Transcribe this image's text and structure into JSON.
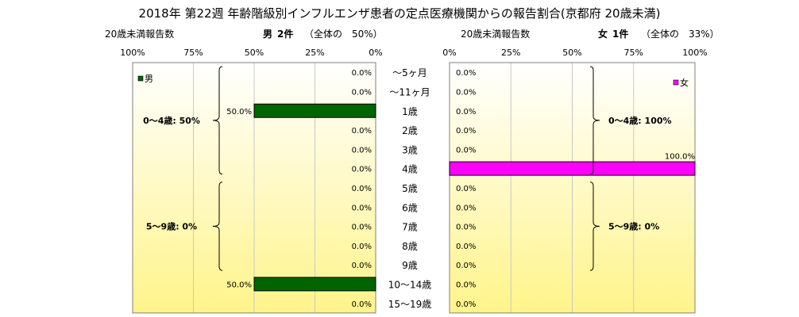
{
  "title": "2018年 第22週 年齢階級別インフルエンザ患者の定点医療機関からの報告割合(京都府 20歳未満)",
  "left_header": {
    "label": "20歳未満報告数",
    "sex": "男",
    "count": "2件",
    "share": "（全体の　50%）"
  },
  "right_header": {
    "label": "20歳未満報告数",
    "sex": "女",
    "count": "1件",
    "share": "（全体の　33%）"
  },
  "colors": {
    "male": "#006400",
    "female": "#ff00ff",
    "bg_top": "#ffffff",
    "bg_bottom": "#fff48a"
  },
  "chart_data": [
    {
      "type": "bar",
      "orientation": "horizontal",
      "direction": "right-to-left",
      "legend": "男",
      "legend_position": "top-left",
      "categories": [
        "～5ヶ月",
        "～11ヶ月",
        "1歳",
        "2歳",
        "3歳",
        "4歳",
        "5歳",
        "6歳",
        "7歳",
        "8歳",
        "9歳",
        "10～14歳",
        "15～19歳"
      ],
      "values": [
        0,
        0,
        50,
        0,
        0,
        0,
        0,
        0,
        0,
        0,
        0,
        50,
        0
      ],
      "data_labels": [
        "0.0%",
        "0.0%",
        "50.0%",
        "0.0%",
        "0.0%",
        "0.0%",
        "0.0%",
        "0.0%",
        "0.0%",
        "0.0%",
        "0.0%",
        "50.0%",
        "0.0%"
      ],
      "xlim": [
        0,
        100
      ],
      "tick_labels": [
        "100%",
        "75%",
        "50%",
        "25%",
        "0%"
      ],
      "grid": true,
      "groups": [
        {
          "label": "0～4歳: 50%",
          "from": 0,
          "to": 5
        },
        {
          "label": "5～9歳: 0%",
          "from": 6,
          "to": 10
        }
      ]
    },
    {
      "type": "bar",
      "orientation": "horizontal",
      "direction": "left-to-right",
      "legend": "女",
      "legend_position": "top-right",
      "categories": [
        "～5ヶ月",
        "～11ヶ月",
        "1歳",
        "2歳",
        "3歳",
        "4歳",
        "5歳",
        "6歳",
        "7歳",
        "8歳",
        "9歳",
        "10～14歳",
        "15～19歳"
      ],
      "values": [
        0,
        0,
        0,
        0,
        0,
        100,
        0,
        0,
        0,
        0,
        0,
        0,
        0
      ],
      "data_labels": [
        "0.0%",
        "0.0%",
        "0.0%",
        "0.0%",
        "0.0%",
        "100.0%",
        "0.0%",
        "0.0%",
        "0.0%",
        "0.0%",
        "0.0%",
        "0.0%",
        "0.0%"
      ],
      "xlim": [
        0,
        100
      ],
      "tick_labels": [
        "0%",
        "25%",
        "50%",
        "75%",
        "100%"
      ],
      "grid": true,
      "groups": [
        {
          "label": "0～4歳: 100%",
          "from": 0,
          "to": 5
        },
        {
          "label": "5～9歳: 0%",
          "from": 6,
          "to": 10
        }
      ]
    }
  ]
}
